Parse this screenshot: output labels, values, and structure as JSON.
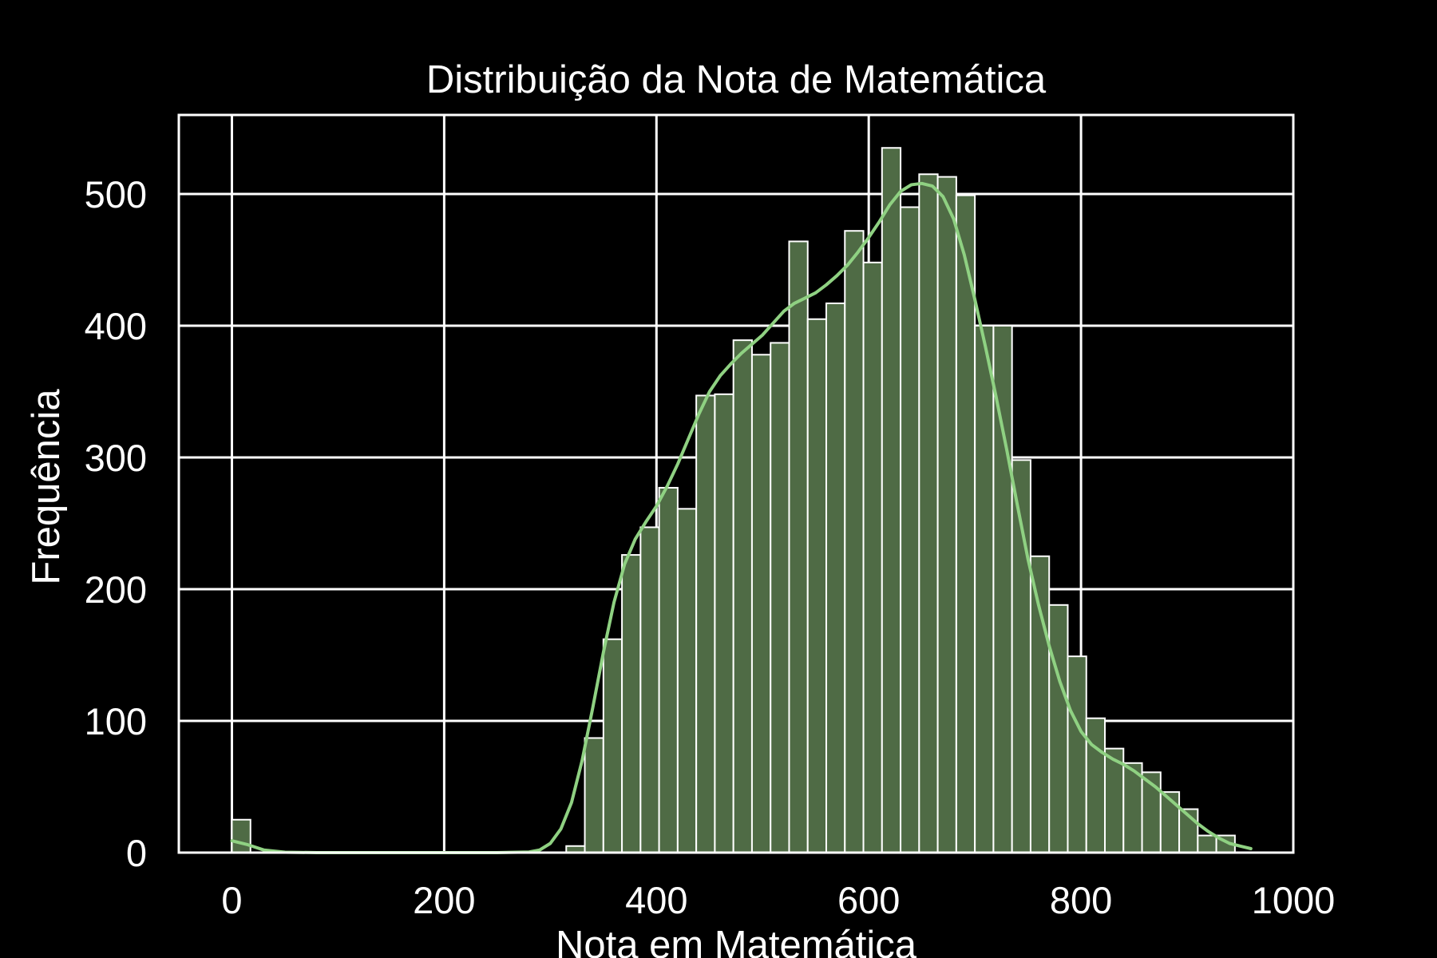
{
  "chart_data": {
    "type": "bar",
    "title": "Distribuição da Nota de Matemática",
    "xlabel": "Nota em Matemática",
    "ylabel": "Frequência",
    "xlim": [
      -50,
      1000
    ],
    "ylim": [
      0,
      560
    ],
    "grid": true,
    "x_ticks": [
      0,
      200,
      400,
      600,
      800,
      1000
    ],
    "y_ticks": [
      0,
      100,
      200,
      300,
      400,
      500
    ],
    "bin_width": 17.5,
    "bins": [
      {
        "start": 0,
        "count": 25
      },
      {
        "start": 315,
        "count": 5
      },
      {
        "start": 332.5,
        "count": 87
      },
      {
        "start": 350,
        "count": 162
      },
      {
        "start": 367.5,
        "count": 226
      },
      {
        "start": 385,
        "count": 247
      },
      {
        "start": 402.5,
        "count": 277
      },
      {
        "start": 420,
        "count": 261
      },
      {
        "start": 437.5,
        "count": 347
      },
      {
        "start": 455,
        "count": 348
      },
      {
        "start": 472.5,
        "count": 389
      },
      {
        "start": 490,
        "count": 378
      },
      {
        "start": 507.5,
        "count": 387
      },
      {
        "start": 525,
        "count": 464
      },
      {
        "start": 542.5,
        "count": 405
      },
      {
        "start": 560,
        "count": 417
      },
      {
        "start": 577.5,
        "count": 472
      },
      {
        "start": 595,
        "count": 448
      },
      {
        "start": 612.5,
        "count": 535
      },
      {
        "start": 630,
        "count": 490
      },
      {
        "start": 647.5,
        "count": 515
      },
      {
        "start": 665,
        "count": 513
      },
      {
        "start": 682.5,
        "count": 499
      },
      {
        "start": 700,
        "count": 400
      },
      {
        "start": 717.5,
        "count": 400
      },
      {
        "start": 735,
        "count": 298
      },
      {
        "start": 752.5,
        "count": 225
      },
      {
        "start": 770,
        "count": 188
      },
      {
        "start": 787.5,
        "count": 149
      },
      {
        "start": 805,
        "count": 102
      },
      {
        "start": 822.5,
        "count": 79
      },
      {
        "start": 840,
        "count": 68
      },
      {
        "start": 857.5,
        "count": 61
      },
      {
        "start": 875,
        "count": 46
      },
      {
        "start": 892.5,
        "count": 33
      },
      {
        "start": 910,
        "count": 13
      },
      {
        "start": 927.5,
        "count": 13
      }
    ],
    "kde": {
      "x": [
        0,
        15,
        30,
        50,
        80,
        150,
        250,
        280,
        290,
        300,
        310,
        320,
        330,
        340,
        350,
        360,
        370,
        380,
        390,
        400,
        410,
        420,
        430,
        440,
        450,
        460,
        470,
        480,
        490,
        500,
        510,
        520,
        530,
        540,
        550,
        560,
        570,
        580,
        590,
        600,
        610,
        620,
        630,
        640,
        650,
        660,
        670,
        680,
        690,
        700,
        710,
        720,
        730,
        740,
        750,
        760,
        770,
        780,
        790,
        800,
        810,
        820,
        830,
        840,
        850,
        860,
        870,
        880,
        890,
        900,
        910,
        920,
        930,
        940,
        950,
        960
      ],
      "y": [
        9,
        6,
        2,
        0.3,
        0,
        0,
        0,
        0.5,
        2,
        7,
        18,
        38,
        70,
        110,
        152,
        190,
        219,
        238,
        251,
        263,
        278,
        295,
        314,
        333,
        350,
        362,
        371,
        379,
        386,
        393,
        402,
        411,
        417,
        421,
        425,
        431,
        438,
        446,
        456,
        467,
        479,
        492,
        502,
        507,
        508,
        506,
        498,
        481,
        454,
        420,
        384,
        346,
        306,
        264,
        223,
        188,
        157,
        130,
        108,
        92,
        82,
        76,
        71,
        67,
        62,
        56,
        50,
        43,
        36,
        29,
        22,
        16,
        11,
        7,
        5,
        3
      ]
    },
    "colors": {
      "background": "#000000",
      "bar_fill": "#4f6b45",
      "bar_edge": "#ffffff",
      "kde_line": "#8fd182",
      "grid": "#ffffff",
      "text": "#ffffff"
    }
  }
}
